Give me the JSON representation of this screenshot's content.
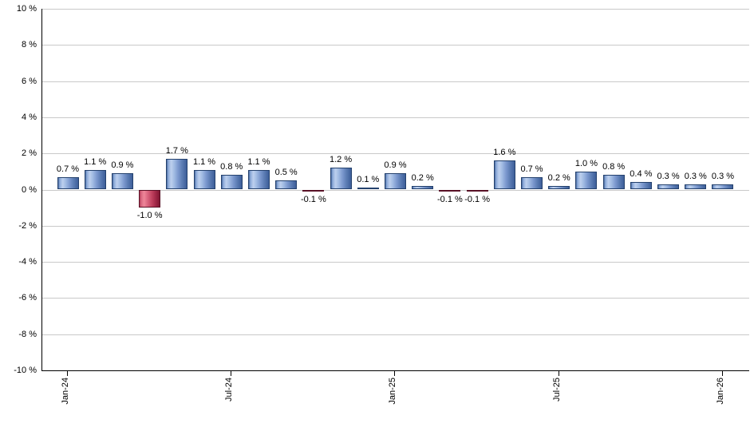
{
  "chart_data": {
    "type": "bar",
    "title": "",
    "xlabel": "",
    "ylabel": "",
    "ylim": [
      -10,
      10
    ],
    "ytick_step": 2,
    "ytick_labels": [
      "10 %",
      "8 %",
      "6 %",
      "4 %",
      "2 %",
      "0 %",
      "-2 %",
      "-4 %",
      "-6 %",
      "-8 %",
      "-10 %"
    ],
    "ytick_values": [
      10,
      8,
      6,
      4,
      2,
      0,
      -2,
      -4,
      -6,
      -8,
      -10
    ],
    "values": [
      0.7,
      1.1,
      0.9,
      -1.0,
      1.7,
      1.1,
      0.8,
      1.1,
      0.5,
      -0.1,
      1.2,
      0.1,
      0.9,
      0.2,
      -0.1,
      -0.1,
      1.6,
      0.7,
      0.2,
      1.0,
      0.8,
      0.4,
      0.3,
      0.3,
      0.3
    ],
    "bar_labels": [
      "0.7 %",
      "1.1 %",
      "0.9 %",
      "-1.0 %",
      "1.7 %",
      "1.1 %",
      "0.8 %",
      "1.1 %",
      "0.5 %",
      "-0.1 %",
      "1.2 %",
      "0.1 %",
      "0.9 %",
      "0.2 %",
      "-0.1 %",
      "-0.1 %",
      "1.6 %",
      "0.7 %",
      "0.2 %",
      "1.0 %",
      "0.8 %",
      "0.4 %",
      "0.3 %",
      "0.3 %",
      "0.3 %"
    ],
    "xtick_labels": [
      "Jan-24",
      "Jul-24",
      "Jan-25",
      "Jul-25",
      "Jan-26"
    ],
    "xtick_bar_indices": [
      0,
      6,
      12,
      18,
      24
    ],
    "grid": true,
    "legend": "none",
    "colors": {
      "positive_bar_highlight": "#bdd0ee",
      "positive_bar_edge": "#3d5e99",
      "positive_bar_border": "#24416d",
      "negative_bar_highlight": "#ee8699",
      "negative_bar_edge": "#9a2443",
      "negative_bar_border": "#591126",
      "gridline": "#c9c9c9",
      "axis": "#000000",
      "text": "#000000",
      "background": "#ffffff"
    }
  }
}
